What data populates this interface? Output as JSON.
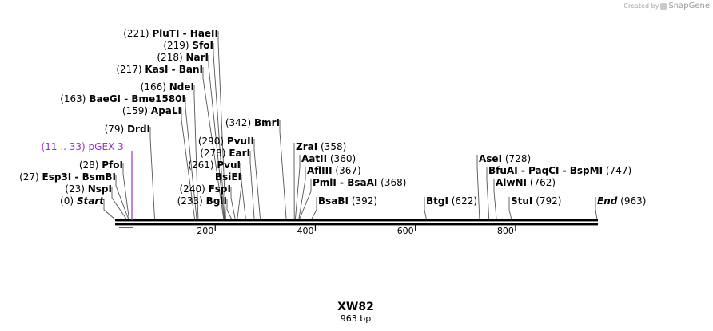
{
  "watermark": {
    "prefix": "Created by",
    "brand": "SnapGene",
    "icon": "snapgene-logo-icon"
  },
  "sequence": {
    "name": "XW82",
    "length_label": "963 bp",
    "length": 963
  },
  "scale_ticks": [
    200,
    400,
    600,
    800
  ],
  "feature": {
    "label": "pGEX 3'",
    "range_label": "(11 .. 33)",
    "start": 11,
    "end": 33,
    "color": "#9b33c9"
  },
  "sites": [
    {
      "id": "start",
      "label": "Start",
      "pos_label": "(0)",
      "pos": 0,
      "italic": true,
      "side": "left"
    },
    {
      "id": "nspi",
      "label": "NspI",
      "pos_label": "(23)",
      "pos": 23,
      "side": "left"
    },
    {
      "id": "esp3i",
      "label": "Esp3I  -  BsmBI",
      "pos_label": "(27)",
      "pos": 27,
      "side": "left"
    },
    {
      "id": "pfoi",
      "label": "PfoI",
      "pos_label": "(28)",
      "pos": 28,
      "side": "left"
    },
    {
      "id": "drdi",
      "label": "DrdI",
      "pos_label": "(79)",
      "pos": 79,
      "side": "left"
    },
    {
      "id": "apali",
      "label": "ApaLI",
      "pos_label": "(159)",
      "pos": 159,
      "side": "left"
    },
    {
      "id": "baegi",
      "label": "BaeGI  -  Bme1580I",
      "pos_label": "(163)",
      "pos": 163,
      "side": "left"
    },
    {
      "id": "ndei",
      "label": "NdeI",
      "pos_label": "(166)",
      "pos": 166,
      "side": "left"
    },
    {
      "id": "kasi",
      "label": "KasI  -  BanI",
      "pos_label": "(217)",
      "pos": 217,
      "side": "left"
    },
    {
      "id": "nari",
      "label": "NarI",
      "pos_label": "(218)",
      "pos": 218,
      "side": "left"
    },
    {
      "id": "sfoi",
      "label": "SfoI",
      "pos_label": "(219)",
      "pos": 219,
      "side": "left"
    },
    {
      "id": "pluti",
      "label": "PluTI  -  HaeII",
      "pos_label": "(221)",
      "pos": 221,
      "side": "left"
    },
    {
      "id": "bgli",
      "label": "BglI",
      "pos_label": "(233)",
      "pos": 233,
      "side": "left"
    },
    {
      "id": "fspi",
      "label": "FspI",
      "pos_label": "(240)",
      "pos": 240,
      "side": "left"
    },
    {
      "id": "bsiei",
      "label": "BsiEI",
      "pos_label": "",
      "pos": 244,
      "side": "left"
    },
    {
      "id": "pvui",
      "label": "PvuI",
      "pos_label": "(261)",
      "pos": 261,
      "side": "left"
    },
    {
      "id": "eari",
      "label": "EarI",
      "pos_label": "(278)",
      "pos": 278,
      "side": "left"
    },
    {
      "id": "pvuii",
      "label": "PvuII",
      "pos_label": "(290)",
      "pos": 290,
      "side": "left"
    },
    {
      "id": "bmri",
      "label": "BmrI",
      "pos_label": "(342)",
      "pos": 342,
      "side": "left"
    },
    {
      "id": "zrai",
      "label": "ZraI",
      "pos_label": "(358)",
      "pos": 358,
      "side": "right"
    },
    {
      "id": "aatii",
      "label": "AatII",
      "pos_label": "(360)",
      "pos": 360,
      "side": "right"
    },
    {
      "id": "afliii",
      "label": "AflIII",
      "pos_label": "(367)",
      "pos": 367,
      "side": "right"
    },
    {
      "id": "pmli",
      "label": "PmlI  -  BsaAI",
      "pos_label": "(368)",
      "pos": 368,
      "side": "right"
    },
    {
      "id": "bsabi",
      "label": "BsaBI",
      "pos_label": "(392)",
      "pos": 392,
      "side": "right"
    },
    {
      "id": "btgi",
      "label": "BtgI",
      "pos_label": "(622)",
      "pos": 622,
      "side": "right"
    },
    {
      "id": "asei",
      "label": "AseI",
      "pos_label": "(728)",
      "pos": 728,
      "side": "right"
    },
    {
      "id": "bfuai",
      "label": "BfuAI  -  PaqCI  -  BspMI",
      "pos_label": "(747)",
      "pos": 747,
      "side": "right"
    },
    {
      "id": "alwni",
      "label": "AlwNI",
      "pos_label": "(762)",
      "pos": 762,
      "side": "right"
    },
    {
      "id": "stui",
      "label": "StuI",
      "pos_label": "(792)",
      "pos": 792,
      "side": "right"
    },
    {
      "id": "end",
      "label": "End",
      "pos_label": "(963)",
      "pos": 963,
      "italic": true,
      "side": "right"
    }
  ]
}
